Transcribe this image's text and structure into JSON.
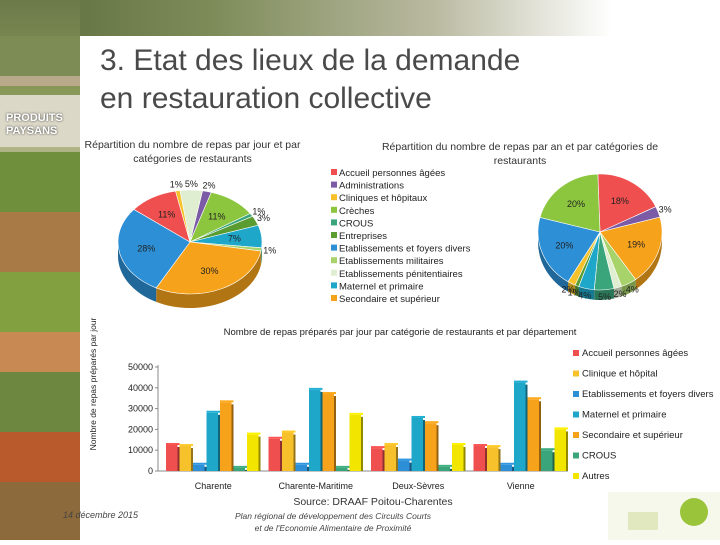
{
  "slide": {
    "title_line1": "3. Etat des lieux de la demande",
    "title_line2": "en restauration collective",
    "date": "14 décembre 2015",
    "footer_line1": "Plan régional de développement des Circuits Courts",
    "footer_line2": "et de l'Economie Alimentaire de Proximité",
    "source": "Source: DRAAF Poitou-Charentes",
    "photo_label": "PRODUITS PAYSANS"
  },
  "colors": {
    "accueil": "#f04f4f",
    "administrations": "#7b5aa6",
    "cliniques": "#f6c12a",
    "creches": "#8cc63f",
    "crous": "#3aa57a",
    "entreprises": "#5a9c2f",
    "etablissements": "#2d8fd6",
    "militaires": "#a8d36a",
    "penitentiaires": "#dfeed0",
    "maternel": "#1fa7c9",
    "secondaire": "#f7a21b",
    "autres": "#f2e600"
  },
  "chart_data": [
    {
      "type": "pie",
      "title": "Répartition du nombre de repas par jour et par catégories de restaurants",
      "slices": [
        {
          "key": "administrations",
          "value": 2,
          "label": "2%"
        },
        {
          "key": "creches",
          "value": 11,
          "label": "11%"
        },
        {
          "key": "crous",
          "value": 1,
          "label": "1%"
        },
        {
          "key": "entreprises",
          "value": 3,
          "label": "3%"
        },
        {
          "key": "maternel",
          "value": 7,
          "label": "7%"
        },
        {
          "key": "militaires",
          "value": 1,
          "label": "1%"
        },
        {
          "key": "secondaire",
          "value": 30,
          "label": "30%"
        },
        {
          "key": "etablissements",
          "value": 28,
          "label": "28%"
        },
        {
          "key": "accueil",
          "value": 11,
          "label": "11%"
        },
        {
          "key": "cliniques",
          "value": 1,
          "label": "1%"
        },
        {
          "key": "penitentiaires",
          "value": 5,
          "label": "5%"
        }
      ]
    },
    {
      "type": "pie",
      "title": "Répartition du nombre de repas par an et par catégories de restaurants",
      "legend": [
        {
          "key": "accueil",
          "label": "Accueil personnes âgées"
        },
        {
          "key": "administrations",
          "label": "Administrations"
        },
        {
          "key": "cliniques",
          "label": "Cliniques et hôpitaux"
        },
        {
          "key": "creches",
          "label": "Crèches"
        },
        {
          "key": "crous",
          "label": "CROUS"
        },
        {
          "key": "entreprises",
          "label": "Entreprises"
        },
        {
          "key": "etablissements",
          "label": "Etablissements et foyers divers"
        },
        {
          "key": "militaires",
          "label": "Etablissements militaires"
        },
        {
          "key": "penitentiaires",
          "label": "Etablissements pénitentiaires"
        },
        {
          "key": "maternel",
          "label": "Maternel et primaire"
        },
        {
          "key": "secondaire",
          "label": "Secondaire et supérieur"
        }
      ],
      "slices": [
        {
          "key": "accueil",
          "value": 18,
          "label": "18%"
        },
        {
          "key": "administrations",
          "value": 3,
          "label": "3%"
        },
        {
          "key": "secondaire",
          "value": 19,
          "label": "19%"
        },
        {
          "key": "militaires",
          "value": 4,
          "label": "4%"
        },
        {
          "key": "penitentiaires",
          "value": 2,
          "label": "2%"
        },
        {
          "key": "crous",
          "value": 5,
          "label": "5%"
        },
        {
          "key": "maternel",
          "value": 4,
          "label": "4%"
        },
        {
          "key": "entreprises",
          "value": 1,
          "label": "1%"
        },
        {
          "key": "cliniques",
          "value": 2,
          "label": "2%"
        },
        {
          "key": "etablissements",
          "value": 20,
          "label": "20%"
        },
        {
          "key": "creches",
          "value": 20,
          "label": "20%"
        }
      ]
    },
    {
      "type": "bar",
      "title": "Nombre de repas préparés par jour par catégorie de restaurants et par département",
      "ylabel": "Nombre de repas préparés par jour",
      "ylim": [
        0,
        50000
      ],
      "yticks": [
        "0",
        "10000",
        "20000",
        "30000",
        "40000",
        "50000"
      ],
      "categories": [
        "Charente",
        "Charente-Maritime",
        "Deux-Sèvres",
        "Vienne"
      ],
      "series": [
        {
          "key": "accueil",
          "name": "Accueil personnes âgées",
          "values": [
            12500,
            15500,
            11000,
            12000
          ]
        },
        {
          "key": "cliniques",
          "name": "Clinique et hôpital",
          "values": [
            12000,
            18500,
            12500,
            11500
          ]
        },
        {
          "key": "etablissements",
          "name": "Etablissements et foyers divers",
          "values": [
            3000,
            3000,
            5000,
            3000
          ]
        },
        {
          "key": "maternel",
          "name": "Maternel et primaire",
          "values": [
            28000,
            39000,
            25500,
            42500
          ]
        },
        {
          "key": "secondaire",
          "name": "Secondaire et supérieur",
          "values": [
            33000,
            37000,
            23000,
            34500
          ]
        },
        {
          "key": "crous",
          "name": "CROUS",
          "values": [
            1500,
            1500,
            2000,
            10000
          ]
        },
        {
          "key": "autres",
          "name": "Autres",
          "values": [
            17500,
            27000,
            12500,
            20000
          ]
        }
      ]
    }
  ]
}
